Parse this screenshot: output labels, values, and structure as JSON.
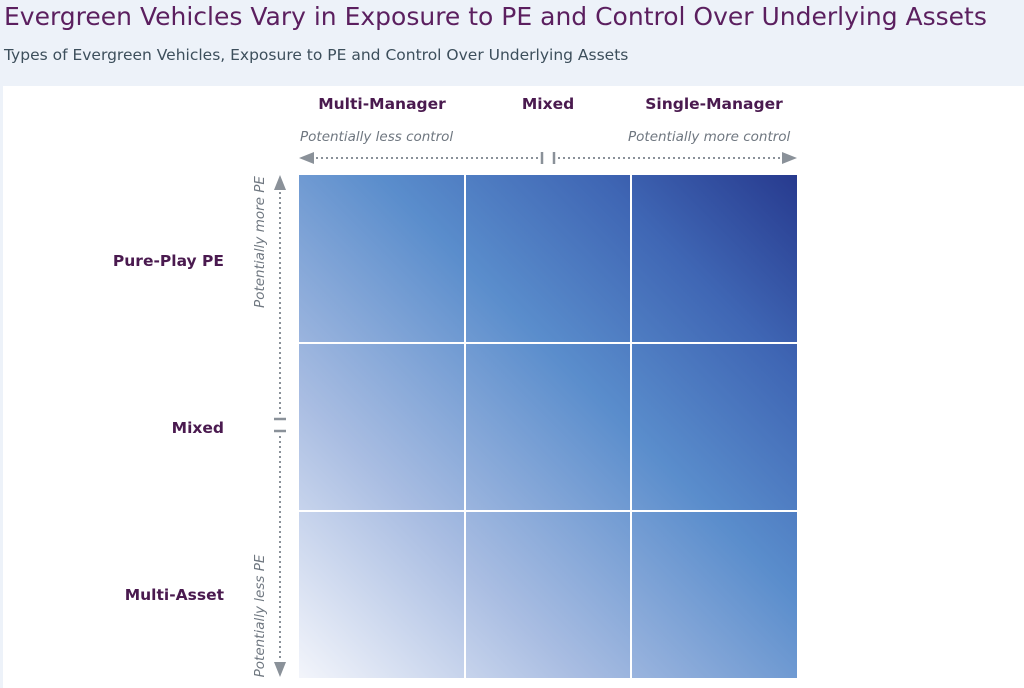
{
  "title": "Evergreen Vehicles Vary in Exposure to PE and Control Over Underlying Assets",
  "subtitle": "Types of Evergreen Vehicles, Exposure to PE and Control Over Underlying Assets",
  "columns": [
    "Multi-Manager",
    "Mixed",
    "Single-Manager"
  ],
  "rows": [
    "Pure-Play PE",
    "Mixed",
    "Multi-Asset"
  ],
  "horizontal_axis": {
    "left_label": "Potentially less control",
    "right_label": "Potentially more control"
  },
  "vertical_axis": {
    "top_label": "Potentially more PE",
    "bottom_label": "Potentially less PE"
  },
  "colors": {
    "title": "#5b1f5f",
    "header": "#4a1a4f",
    "gradient_dark": "#273a8e",
    "gradient_light": "#f3f5fb",
    "arrow": "#8a9199"
  }
}
